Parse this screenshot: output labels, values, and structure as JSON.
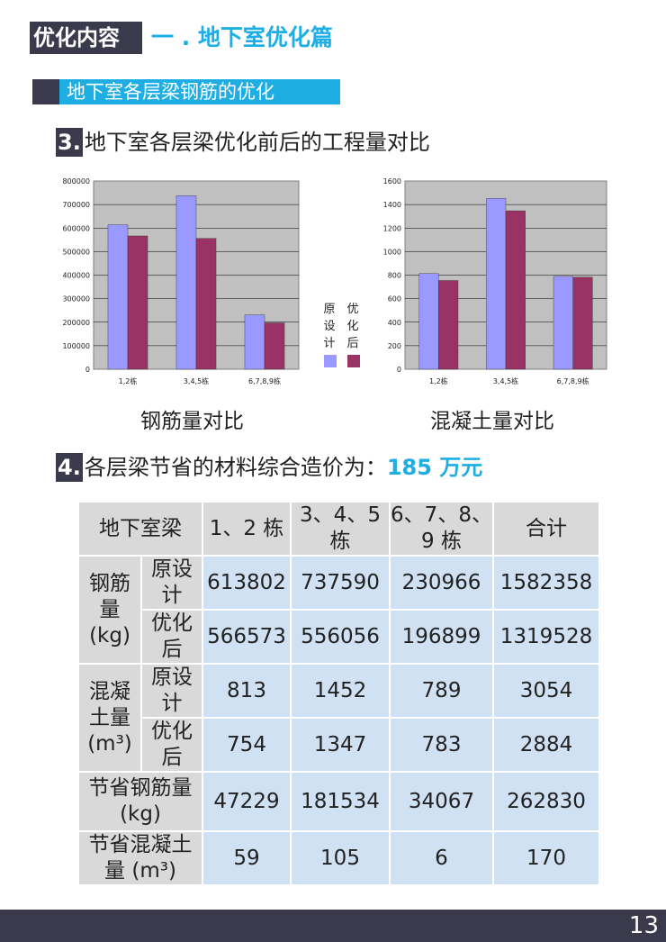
{
  "header": {
    "label": "优化内容",
    "title": "一 . 地下室优化篇"
  },
  "subheading": "地下室各层梁钢筋的优化",
  "section3": {
    "num": "3.",
    "text": "地下室各层梁优化前后的工程量对比"
  },
  "section4": {
    "num": "4.",
    "text": "各层梁节省的材料综合造价为：",
    "value": "185 万元"
  },
  "legend": {
    "original": "原设计",
    "optimized": "优化后"
  },
  "colors": {
    "original": "#9999ff",
    "optimized": "#993366",
    "plot_bg": "#c0c0c0",
    "accent": "#1eaee3",
    "dark": "#3a3a4c"
  },
  "chart_data": [
    {
      "type": "bar",
      "title": "钢筋量对比",
      "categories": [
        "1,2栋",
        "3,4,5栋",
        "6,7,8,9栋"
      ],
      "series": [
        {
          "name": "原设计",
          "values": [
            613802,
            737590,
            230966
          ]
        },
        {
          "name": "优化后",
          "values": [
            566573,
            556056,
            196899
          ]
        }
      ],
      "ylim": [
        0,
        800000
      ],
      "yticks": [
        0,
        100000,
        200000,
        300000,
        400000,
        500000,
        600000,
        700000,
        800000
      ],
      "grid": true,
      "legend": "right"
    },
    {
      "type": "bar",
      "title": "混凝土量对比",
      "categories": [
        "1,2栋",
        "3,4,5栋",
        "6,7,8,9栋"
      ],
      "series": [
        {
          "name": "原设计",
          "values": [
            813,
            1452,
            789
          ]
        },
        {
          "name": "优化后",
          "values": [
            754,
            1347,
            783
          ]
        }
      ],
      "ylim": [
        0,
        1600
      ],
      "yticks": [
        0,
        200,
        400,
        600,
        800,
        1000,
        1200,
        1400,
        1600
      ],
      "grid": true,
      "legend": "left"
    }
  ],
  "table": {
    "header": {
      "c0": "地下室梁",
      "c1": "1、2 栋",
      "c2": "3、4、5 栋",
      "c3": "6、7、8、9 栋",
      "c4": "合计"
    },
    "steel_label": "钢筋量 (kg)",
    "concrete_label": "混凝土量 (m³)",
    "original": "原设计",
    "optimized": "优化后",
    "steel_original": [
      "613802",
      "737590",
      "230966",
      "1582358"
    ],
    "steel_optimized": [
      "566573",
      "556056",
      "196899",
      "1319528"
    ],
    "concrete_original": [
      "813",
      "1452",
      "789",
      "3054"
    ],
    "concrete_optimized": [
      "754",
      "1347",
      "783",
      "2884"
    ],
    "saved_steel_label": "节省钢筋量 (kg)",
    "saved_steel": [
      "47229",
      "181534",
      "34067",
      "262830"
    ],
    "saved_concrete_label": "节省混凝土量 (m³)",
    "saved_concrete": [
      "59",
      "105",
      "6",
      "170"
    ]
  },
  "page_number": "13"
}
